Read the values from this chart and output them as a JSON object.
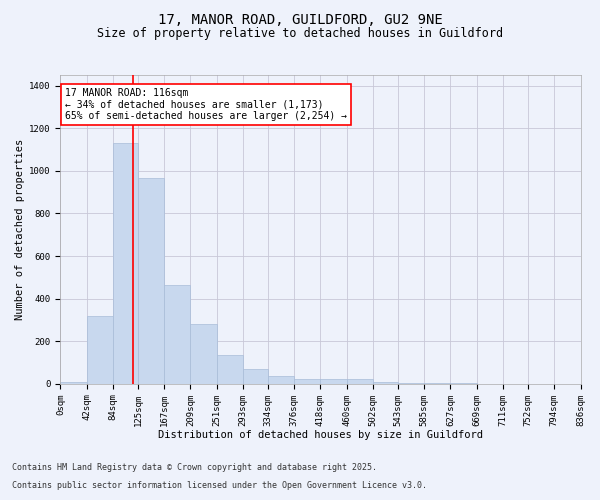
{
  "title_line1": "17, MANOR ROAD, GUILDFORD, GU2 9NE",
  "title_line2": "Size of property relative to detached houses in Guildford",
  "xlabel": "Distribution of detached houses by size in Guildford",
  "ylabel": "Number of detached properties",
  "footnote1": "Contains HM Land Registry data © Crown copyright and database right 2025.",
  "footnote2": "Contains public sector information licensed under the Open Government Licence v3.0.",
  "annotation_title": "17 MANOR ROAD: 116sqm",
  "annotation_line2": "← 34% of detached houses are smaller (1,173)",
  "annotation_line3": "65% of semi-detached houses are larger (2,254) →",
  "vline_x": 116,
  "bar_color": "#c8d8ee",
  "bar_edge_color": "#a8bcd8",
  "vline_color": "red",
  "background_color": "#eef2fb",
  "grid_color": "#c8c8d8",
  "bin_edges": [
    0,
    42,
    84,
    125,
    167,
    209,
    251,
    293,
    334,
    376,
    418,
    460,
    502,
    543,
    585,
    627,
    669,
    711,
    752,
    794,
    836
  ],
  "bar_heights": [
    10,
    320,
    1130,
    965,
    465,
    280,
    135,
    68,
    38,
    22,
    25,
    22,
    10,
    5,
    3,
    2,
    1,
    1,
    1,
    1
  ],
  "ylim": [
    0,
    1450
  ],
  "yticks": [
    0,
    200,
    400,
    600,
    800,
    1000,
    1200,
    1400
  ],
  "annotation_box_color": "white",
  "annotation_box_edge": "red",
  "title_fontsize": 10,
  "subtitle_fontsize": 8.5,
  "tick_fontsize": 6.5,
  "ylabel_fontsize": 7.5,
  "xlabel_fontsize": 7.5,
  "annotation_fontsize": 7,
  "footnote_fontsize": 6
}
